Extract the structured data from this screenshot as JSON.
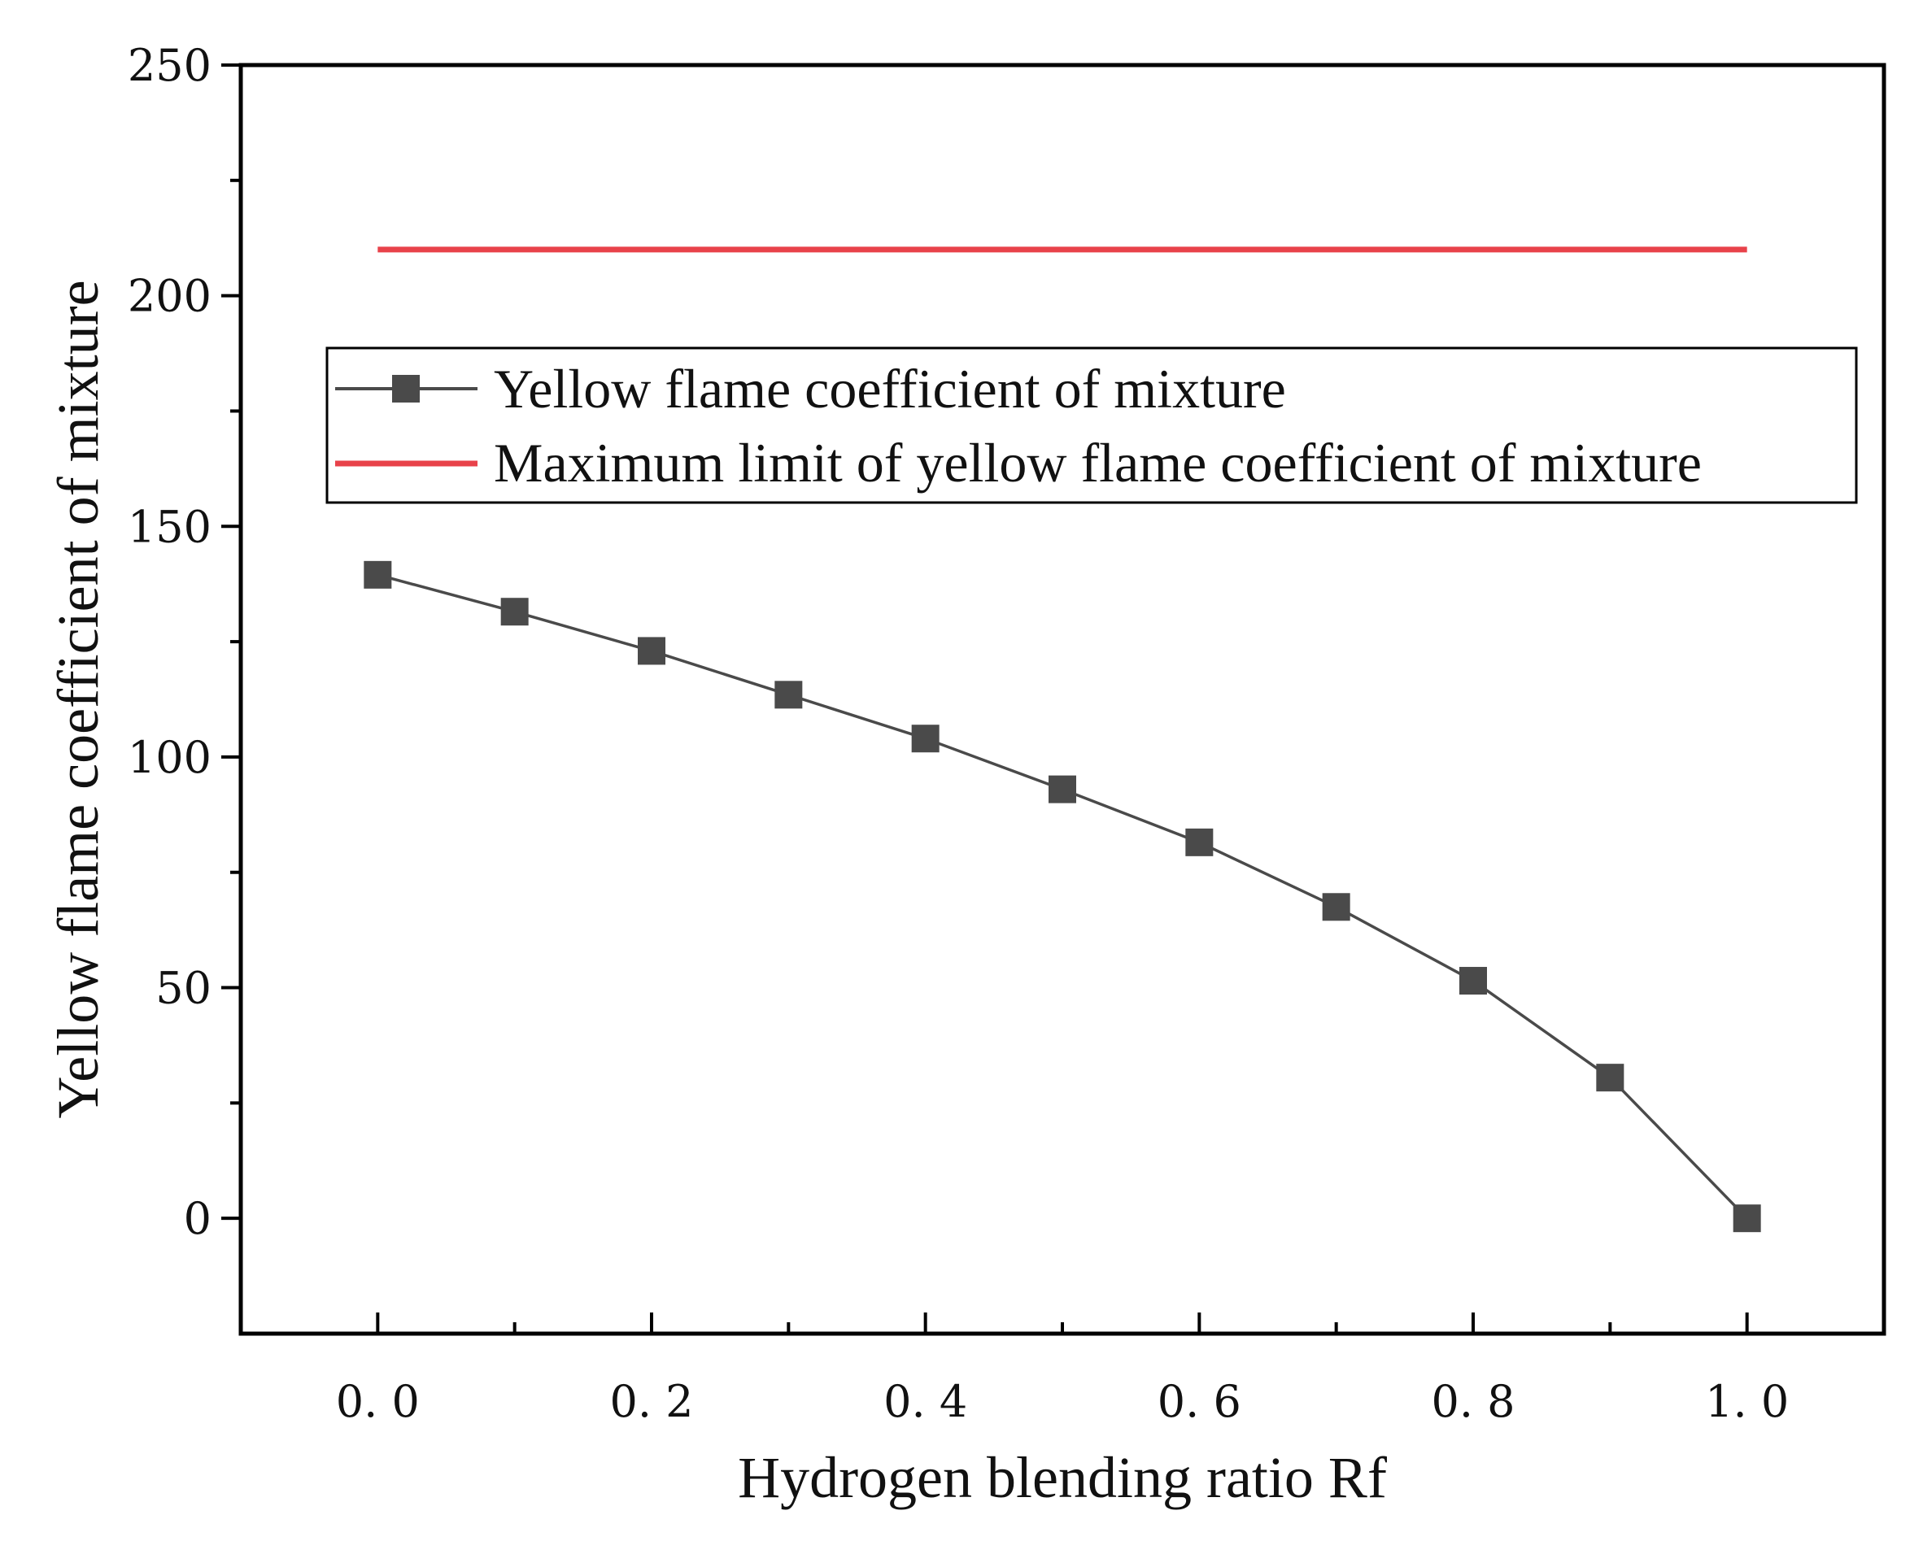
{
  "chart_data": {
    "type": "line",
    "title": "",
    "xlabel": "Hydrogen blending ratio Rf",
    "ylabel": "Yellow flame coefficient of mixture",
    "xlim": [
      -0.1,
      1.1
    ],
    "ylim": [
      -25,
      250
    ],
    "x_major_ticks": [
      0.0,
      0.2,
      0.4,
      0.6,
      0.8,
      1.0
    ],
    "x_tick_labels": [
      "0. 0",
      "0. 2",
      "0. 4",
      "0. 6",
      "0. 8",
      "1. 0"
    ],
    "x_minor_ticks": [
      0.1,
      0.3,
      0.5,
      0.7,
      0.9
    ],
    "y_major_ticks": [
      0,
      50,
      100,
      150,
      200,
      250
    ],
    "y_tick_labels": [
      "0",
      "50",
      "100",
      "150",
      "200",
      "250"
    ],
    "y_minor_ticks": [
      25,
      75,
      125,
      175,
      225
    ],
    "grid": false,
    "legend_position": "upper-center",
    "series": [
      {
        "name": "Yellow flame coefficient of mixture",
        "color": "#4a4a4a",
        "marker": "square",
        "x": [
          0.0,
          0.1,
          0.2,
          0.3,
          0.4,
          0.5,
          0.6,
          0.7,
          0.8,
          0.9,
          1.0
        ],
        "values": [
          139.5,
          131.5,
          123,
          113.5,
          104,
          93,
          81.5,
          67.5,
          51.5,
          30.5,
          0
        ]
      },
      {
        "name": "Maximum limit of yellow flame coefficient of mixture",
        "color": "#e8424a",
        "marker": "none",
        "x": [
          0.0,
          1.0
        ],
        "values": [
          210,
          210
        ]
      }
    ]
  }
}
